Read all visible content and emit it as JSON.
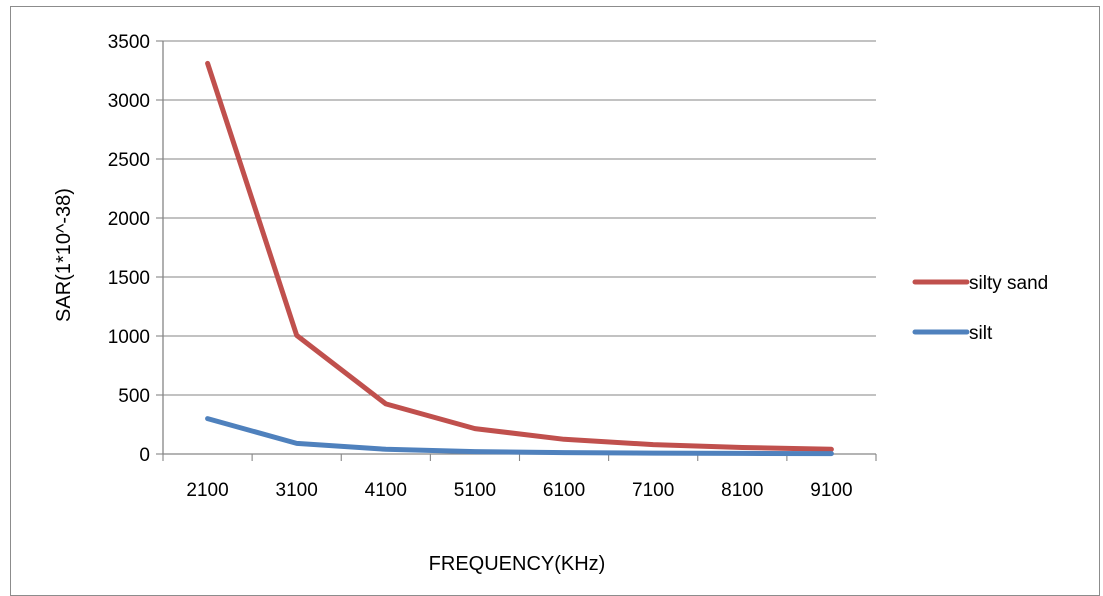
{
  "chart_data": {
    "type": "line",
    "title": "",
    "xlabel": "FREQUENCY(KHz)",
    "ylabel": "SAR(1*10^-38)",
    "categories": [
      "2100",
      "3100",
      "4100",
      "5100",
      "6100",
      "7100",
      "8100",
      "9100"
    ],
    "ylim": [
      0,
      3500
    ],
    "yticks": [
      0,
      500,
      1000,
      1500,
      2000,
      2500,
      3000,
      3500
    ],
    "grid": "horizontal",
    "legend_position": "right",
    "series": [
      {
        "name": "silty sand",
        "color": "#c0504d",
        "values": [
          3310,
          1005,
          425,
          215,
          125,
          80,
          55,
          40
        ]
      },
      {
        "name": "silt",
        "color": "#4f81bd",
        "values": [
          300,
          90,
          40,
          20,
          12,
          8,
          5,
          3
        ]
      }
    ]
  }
}
